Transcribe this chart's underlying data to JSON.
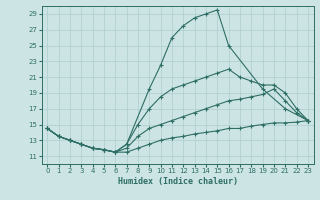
{
  "xlabel": "Humidex (Indice chaleur)",
  "xlim": [
    -0.5,
    23.5
  ],
  "ylim": [
    10,
    30
  ],
  "yticks": [
    11,
    13,
    15,
    17,
    19,
    21,
    23,
    25,
    27,
    29
  ],
  "xticks": [
    0,
    1,
    2,
    3,
    4,
    5,
    6,
    7,
    8,
    9,
    10,
    11,
    12,
    13,
    14,
    15,
    16,
    17,
    18,
    19,
    20,
    21,
    22,
    23
  ],
  "bg_color": "#cde4e4",
  "line_color": "#2d6e65",
  "grid_color": "#aecece",
  "curves": [
    {
      "x": [
        0,
        1,
        2,
        3,
        4,
        5,
        6,
        7,
        8,
        9,
        10,
        11,
        12,
        13,
        14,
        15,
        16,
        17,
        18,
        19,
        20,
        21,
        22,
        23
      ],
      "y": [
        14.5,
        13.5,
        13.0,
        12.5,
        12.0,
        11.8,
        11.5,
        11.5,
        12.0,
        12.5,
        13.0,
        13.3,
        13.5,
        13.8,
        14.0,
        14.2,
        14.5,
        14.5,
        14.8,
        15.0,
        15.2,
        15.2,
        15.3,
        15.5
      ]
    },
    {
      "x": [
        0,
        1,
        2,
        3,
        4,
        5,
        6,
        7,
        8,
        9,
        10,
        11,
        12,
        13,
        14,
        15,
        16,
        17,
        18,
        19,
        20,
        21,
        22,
        23
      ],
      "y": [
        14.5,
        13.5,
        13.0,
        12.5,
        12.0,
        11.8,
        11.5,
        12.0,
        13.5,
        14.5,
        15.0,
        15.5,
        16.0,
        16.5,
        17.0,
        17.5,
        18.0,
        18.2,
        18.5,
        18.8,
        19.5,
        18.0,
        16.5,
        15.5
      ]
    },
    {
      "x": [
        0,
        1,
        2,
        3,
        4,
        5,
        6,
        7,
        8,
        9,
        10,
        11,
        12,
        13,
        14,
        15,
        16,
        17,
        18,
        19,
        20,
        21,
        22,
        23
      ],
      "y": [
        14.5,
        13.5,
        13.0,
        12.5,
        12.0,
        11.8,
        11.5,
        12.5,
        15.0,
        17.0,
        18.5,
        19.5,
        20.0,
        20.5,
        21.0,
        21.5,
        22.0,
        21.0,
        20.5,
        20.0,
        20.0,
        19.0,
        17.0,
        15.5
      ]
    },
    {
      "x": [
        0,
        1,
        2,
        3,
        4,
        5,
        6,
        7,
        9,
        10,
        11,
        12,
        13,
        14,
        15,
        16,
        19,
        21,
        23
      ],
      "y": [
        14.5,
        13.5,
        13.0,
        12.5,
        12.0,
        11.8,
        11.5,
        12.5,
        19.5,
        22.5,
        26.0,
        27.5,
        28.5,
        29.0,
        29.5,
        25.0,
        19.5,
        17.0,
        15.5
      ]
    }
  ]
}
